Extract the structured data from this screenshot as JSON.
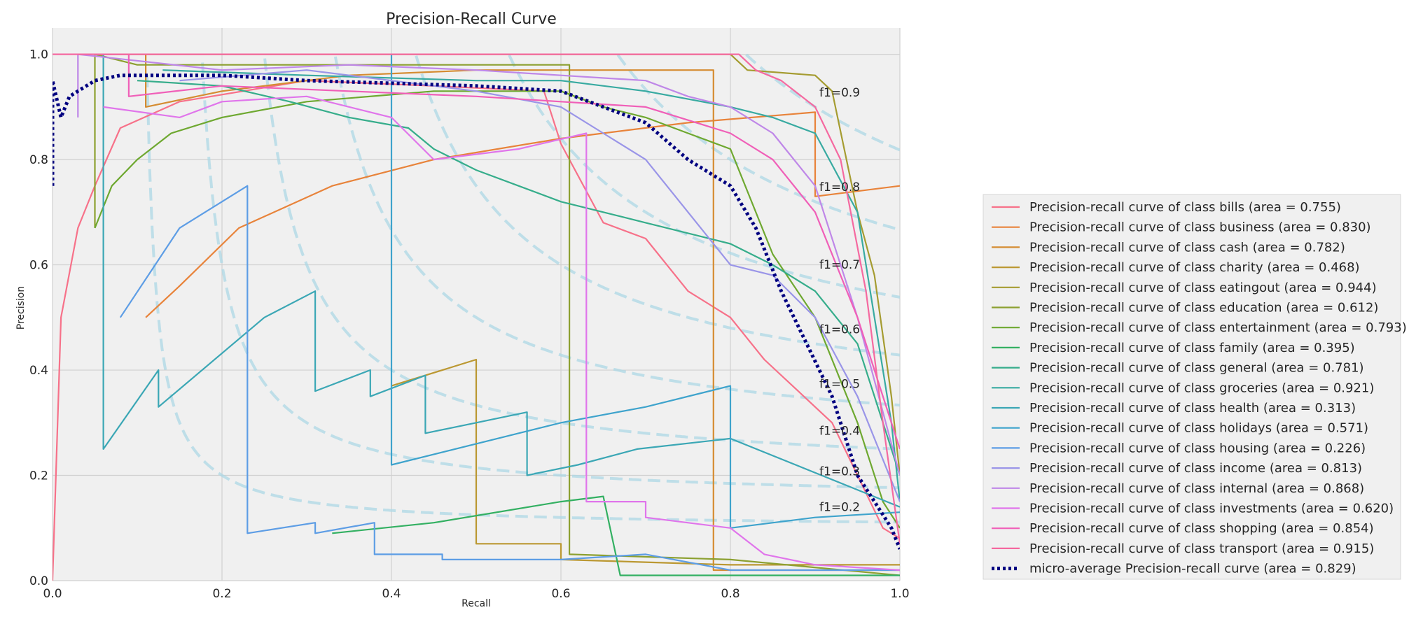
{
  "chart_data": {
    "type": "line",
    "title": "Precision-Recall Curve",
    "xlabel": "Recall",
    "ylabel": "Precision",
    "xlim": [
      0.0,
      1.0
    ],
    "ylim": [
      0.0,
      1.05
    ],
    "x_ticks": [
      "0.0",
      "0.2",
      "0.4",
      "0.6",
      "0.8",
      "1.0"
    ],
    "y_ticks": [
      "0.0",
      "0.2",
      "0.4",
      "0.6",
      "0.8",
      "1.0"
    ],
    "grid": true,
    "legend_position": "outside-right",
    "iso_f1": {
      "values": [
        0.2,
        0.3,
        0.4,
        0.5,
        0.6,
        0.7,
        0.8,
        0.9
      ],
      "labels": [
        "f1=0.2",
        "f1=0.3",
        "f1=0.4",
        "f1=0.5",
        "f1=0.6",
        "f1=0.7",
        "f1=0.8",
        "f1=0.9"
      ],
      "color": "#add8e6"
    },
    "series": [
      {
        "name": "Precision-recall curve of class bills (area = 0.755)",
        "color": "#f77189",
        "points": [
          [
            0,
            0
          ],
          [
            0.01,
            0.5
          ],
          [
            0.03,
            0.67
          ],
          [
            0.05,
            0.75
          ],
          [
            0.08,
            0.86
          ],
          [
            0.15,
            0.91
          ],
          [
            0.3,
            0.95
          ],
          [
            0.45,
            0.94
          ],
          [
            0.58,
            0.93
          ],
          [
            0.6,
            0.83
          ],
          [
            0.65,
            0.68
          ],
          [
            0.7,
            0.65
          ],
          [
            0.75,
            0.55
          ],
          [
            0.8,
            0.5
          ],
          [
            0.84,
            0.42
          ],
          [
            0.88,
            0.36
          ],
          [
            0.92,
            0.3
          ],
          [
            0.95,
            0.2
          ],
          [
            0.98,
            0.1
          ],
          [
            1.0,
            0.08
          ]
        ]
      },
      {
        "name": "Precision-recall curve of class business (area = 0.830)",
        "color": "#e8833a",
        "points": [
          [
            0.11,
            0.5
          ],
          [
            0.15,
            0.56
          ],
          [
            0.22,
            0.67
          ],
          [
            0.33,
            0.75
          ],
          [
            0.45,
            0.8
          ],
          [
            0.6,
            0.84
          ],
          [
            0.75,
            0.87
          ],
          [
            0.9,
            0.89
          ],
          [
            0.9,
            0.73
          ],
          [
            1.0,
            0.75
          ]
        ]
      },
      {
        "name": "Precision-recall curve of class cash (area = 0.782)",
        "color": "#d58c32",
        "points": [
          [
            0.11,
            1.0
          ],
          [
            0.11,
            0.9
          ],
          [
            0.2,
            0.93
          ],
          [
            0.35,
            0.96
          ],
          [
            0.5,
            0.97
          ],
          [
            0.7,
            0.97
          ],
          [
            0.78,
            0.97
          ],
          [
            0.78,
            0.02
          ],
          [
            0.9,
            0.02
          ],
          [
            1.0,
            0.02
          ]
        ]
      },
      {
        "name": "Precision-recall curve of class charity (area = 0.468)",
        "color": "#bb9832",
        "points": [
          [
            0.4,
            0.37
          ],
          [
            0.5,
            0.42
          ],
          [
            0.5,
            0.07
          ],
          [
            0.6,
            0.07
          ],
          [
            0.6,
            0.04
          ],
          [
            0.8,
            0.03
          ],
          [
            1.0,
            0.03
          ]
        ]
      },
      {
        "name": "Precision-recall curve of class eatingout (area = 0.944)",
        "color": "#a59c31",
        "points": [
          [
            0.05,
            1.0
          ],
          [
            0.3,
            1.0
          ],
          [
            0.6,
            1.0
          ],
          [
            0.8,
            1.0
          ],
          [
            0.82,
            0.97
          ],
          [
            0.9,
            0.96
          ],
          [
            0.92,
            0.93
          ],
          [
            0.95,
            0.7
          ],
          [
            0.97,
            0.58
          ],
          [
            0.99,
            0.35
          ],
          [
            1.0,
            0.2
          ]
        ]
      },
      {
        "name": "Precision-recall curve of class education (area = 0.612)",
        "color": "#8ca030",
        "points": [
          [
            0.05,
            0.67
          ],
          [
            0.05,
            1.0
          ],
          [
            0.1,
            0.98
          ],
          [
            0.6,
            0.98
          ],
          [
            0.61,
            0.98
          ],
          [
            0.61,
            0.05
          ],
          [
            0.8,
            0.04
          ],
          [
            1.0,
            0.01
          ]
        ]
      },
      {
        "name": "Precision-recall curve of class entertainment (area = 0.793)",
        "color": "#6ea830",
        "points": [
          [
            0.05,
            0.67
          ],
          [
            0.07,
            0.75
          ],
          [
            0.1,
            0.8
          ],
          [
            0.14,
            0.85
          ],
          [
            0.2,
            0.88
          ],
          [
            0.3,
            0.91
          ],
          [
            0.45,
            0.93
          ],
          [
            0.6,
            0.93
          ],
          [
            0.65,
            0.9
          ],
          [
            0.7,
            0.88
          ],
          [
            0.75,
            0.85
          ],
          [
            0.8,
            0.82
          ],
          [
            0.85,
            0.62
          ],
          [
            0.9,
            0.5
          ],
          [
            0.95,
            0.3
          ],
          [
            0.98,
            0.15
          ],
          [
            1.0,
            0.1
          ]
        ]
      },
      {
        "name": "Precision-recall curve of class family (area = 0.395)",
        "color": "#33b062",
        "points": [
          [
            0.33,
            0.09
          ],
          [
            0.45,
            0.11
          ],
          [
            0.6,
            0.15
          ],
          [
            0.65,
            0.16
          ],
          [
            0.67,
            0.01
          ],
          [
            0.8,
            0.01
          ],
          [
            1.0,
            0.01
          ]
        ]
      },
      {
        "name": "Precision-recall curve of class general (area = 0.781)",
        "color": "#36ad8b",
        "points": [
          [
            0.1,
            0.95
          ],
          [
            0.2,
            0.94
          ],
          [
            0.28,
            0.91
          ],
          [
            0.35,
            0.88
          ],
          [
            0.42,
            0.86
          ],
          [
            0.45,
            0.82
          ],
          [
            0.5,
            0.78
          ],
          [
            0.55,
            0.75
          ],
          [
            0.6,
            0.72
          ],
          [
            0.65,
            0.7
          ],
          [
            0.7,
            0.68
          ],
          [
            0.75,
            0.66
          ],
          [
            0.8,
            0.64
          ],
          [
            0.85,
            0.6
          ],
          [
            0.9,
            0.55
          ],
          [
            0.95,
            0.45
          ],
          [
            0.98,
            0.3
          ],
          [
            1.0,
            0.2
          ]
        ]
      },
      {
        "name": "Precision-recall curve of class groceries (area = 0.921)",
        "color": "#38aaa1",
        "points": [
          [
            0.13,
            0.97
          ],
          [
            0.3,
            0.96
          ],
          [
            0.5,
            0.95
          ],
          [
            0.6,
            0.95
          ],
          [
            0.7,
            0.93
          ],
          [
            0.8,
            0.9
          ],
          [
            0.85,
            0.88
          ],
          [
            0.9,
            0.85
          ],
          [
            0.95,
            0.7
          ],
          [
            0.97,
            0.5
          ],
          [
            0.99,
            0.3
          ],
          [
            1.0,
            0.15
          ]
        ]
      },
      {
        "name": "Precision-recall curve of class health (area = 0.313)",
        "color": "#3ba7b5",
        "points": [
          [
            0.06,
            1.0
          ],
          [
            0.06,
            0.25
          ],
          [
            0.125,
            0.4
          ],
          [
            0.125,
            0.33
          ],
          [
            0.25,
            0.5
          ],
          [
            0.31,
            0.55
          ],
          [
            0.31,
            0.36
          ],
          [
            0.375,
            0.4
          ],
          [
            0.375,
            0.35
          ],
          [
            0.44,
            0.39
          ],
          [
            0.44,
            0.28
          ],
          [
            0.5,
            0.3
          ],
          [
            0.56,
            0.32
          ],
          [
            0.56,
            0.2
          ],
          [
            0.62,
            0.22
          ],
          [
            0.69,
            0.25
          ],
          [
            0.8,
            0.27
          ],
          [
            1.0,
            0.14
          ]
        ]
      },
      {
        "name": "Precision-recall curve of class holidays (area = 0.571)",
        "color": "#3ea3cc",
        "points": [
          [
            0.4,
            1.0
          ],
          [
            0.4,
            0.22
          ],
          [
            0.5,
            0.26
          ],
          [
            0.6,
            0.3
          ],
          [
            0.7,
            0.33
          ],
          [
            0.8,
            0.37
          ],
          [
            0.8,
            0.1
          ],
          [
            0.9,
            0.12
          ],
          [
            1.0,
            0.13
          ]
        ]
      },
      {
        "name": "Precision-recall curve of class housing (area = 0.226)",
        "color": "#5d9de5",
        "points": [
          [
            0.08,
            0.5
          ],
          [
            0.15,
            0.67
          ],
          [
            0.23,
            0.75
          ],
          [
            0.23,
            0.09
          ],
          [
            0.31,
            0.11
          ],
          [
            0.31,
            0.09
          ],
          [
            0.38,
            0.11
          ],
          [
            0.38,
            0.05
          ],
          [
            0.46,
            0.05
          ],
          [
            0.46,
            0.04
          ],
          [
            0.6,
            0.04
          ],
          [
            0.7,
            0.05
          ],
          [
            0.8,
            0.02
          ],
          [
            1.0,
            0.02
          ]
        ]
      },
      {
        "name": "Precision-recall curve of class income (area = 0.813)",
        "color": "#9a95e8",
        "points": [
          [
            0.15,
            0.95
          ],
          [
            0.3,
            0.97
          ],
          [
            0.5,
            0.93
          ],
          [
            0.6,
            0.9
          ],
          [
            0.65,
            0.85
          ],
          [
            0.7,
            0.8
          ],
          [
            0.75,
            0.7
          ],
          [
            0.8,
            0.6
          ],
          [
            0.85,
            0.58
          ],
          [
            0.9,
            0.5
          ],
          [
            0.95,
            0.35
          ],
          [
            1.0,
            0.15
          ]
        ]
      },
      {
        "name": "Precision-recall curve of class internal (area = 0.868)",
        "color": "#bf87e8",
        "points": [
          [
            0.03,
            0.88
          ],
          [
            0.03,
            1.0
          ],
          [
            0.2,
            0.97
          ],
          [
            0.35,
            0.98
          ],
          [
            0.5,
            0.97
          ],
          [
            0.6,
            0.96
          ],
          [
            0.7,
            0.95
          ],
          [
            0.75,
            0.92
          ],
          [
            0.8,
            0.9
          ],
          [
            0.85,
            0.85
          ],
          [
            0.9,
            0.75
          ],
          [
            0.95,
            0.5
          ],
          [
            1.0,
            0.2
          ]
        ]
      },
      {
        "name": "Precision-recall curve of class investments (area = 0.620)",
        "color": "#e075eb",
        "points": [
          [
            0.06,
            0.9
          ],
          [
            0.15,
            0.88
          ],
          [
            0.2,
            0.91
          ],
          [
            0.3,
            0.92
          ],
          [
            0.4,
            0.88
          ],
          [
            0.45,
            0.8
          ],
          [
            0.55,
            0.82
          ],
          [
            0.63,
            0.85
          ],
          [
            0.63,
            0.15
          ],
          [
            0.7,
            0.15
          ],
          [
            0.7,
            0.12
          ],
          [
            0.8,
            0.1
          ],
          [
            0.84,
            0.05
          ],
          [
            0.9,
            0.03
          ],
          [
            1.0,
            0.02
          ]
        ]
      },
      {
        "name": "Precision-recall curve of class shopping (area = 0.854)",
        "color": "#f05fb8",
        "points": [
          [
            0.05,
            1.0
          ],
          [
            0.09,
            1.0
          ],
          [
            0.09,
            0.92
          ],
          [
            0.2,
            0.94
          ],
          [
            0.35,
            0.93
          ],
          [
            0.5,
            0.92
          ],
          [
            0.6,
            0.91
          ],
          [
            0.7,
            0.9
          ],
          [
            0.8,
            0.85
          ],
          [
            0.85,
            0.8
          ],
          [
            0.9,
            0.7
          ],
          [
            0.95,
            0.5
          ],
          [
            1.0,
            0.25
          ]
        ]
      },
      {
        "name": "Precision-recall curve of class transport (area = 0.915)",
        "color": "#f569a0",
        "points": [
          [
            0.0,
            1.0
          ],
          [
            0.2,
            1.0
          ],
          [
            0.4,
            1.0
          ],
          [
            0.6,
            1.0
          ],
          [
            0.81,
            1.0
          ],
          [
            0.83,
            0.97
          ],
          [
            0.86,
            0.95
          ],
          [
            0.9,
            0.9
          ],
          [
            0.93,
            0.8
          ],
          [
            0.96,
            0.55
          ],
          [
            0.98,
            0.3
          ],
          [
            1.0,
            0.07
          ]
        ]
      },
      {
        "name": "micro-average Precision-recall curve (area = 0.829)",
        "color": "#000080",
        "dotted": true,
        "points": [
          [
            0.0,
            0.75
          ],
          [
            0.0,
            0.95
          ],
          [
            0.01,
            0.88
          ],
          [
            0.02,
            0.92
          ],
          [
            0.03,
            0.93
          ],
          [
            0.05,
            0.95
          ],
          [
            0.08,
            0.96
          ],
          [
            0.1,
            0.96
          ],
          [
            0.15,
            0.96
          ],
          [
            0.2,
            0.96
          ],
          [
            0.3,
            0.95
          ],
          [
            0.4,
            0.945
          ],
          [
            0.5,
            0.94
          ],
          [
            0.55,
            0.935
          ],
          [
            0.6,
            0.93
          ],
          [
            0.65,
            0.9
          ],
          [
            0.7,
            0.87
          ],
          [
            0.75,
            0.8
          ],
          [
            0.8,
            0.75
          ],
          [
            0.83,
            0.67
          ],
          [
            0.86,
            0.55
          ],
          [
            0.89,
            0.45
          ],
          [
            0.92,
            0.35
          ],
          [
            0.95,
            0.2
          ],
          [
            0.97,
            0.15
          ],
          [
            0.99,
            0.1
          ],
          [
            1.0,
            0.06
          ]
        ]
      }
    ]
  }
}
